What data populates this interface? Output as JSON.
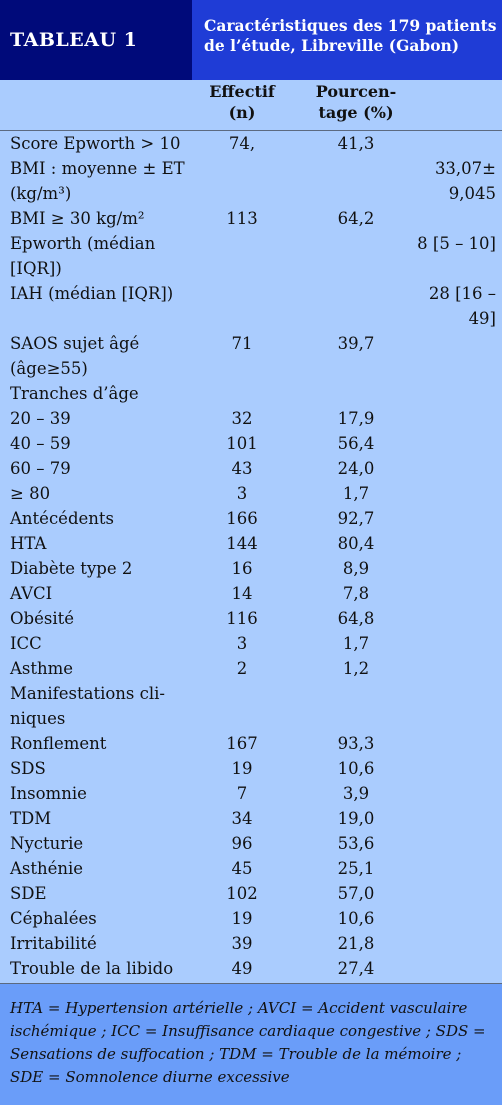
{
  "table": {
    "label": "TABLEAU 1",
    "title": "Caractéristiques des 179 patients de l’étude, Libreville (Gabon)",
    "col_effectif": "Effectif (n)",
    "col_pourcentage": "Pourcen-tage (%)",
    "rows": [
      {
        "label": "Score Epworth > 10",
        "n": "74,",
        "pct": "41,3",
        "extra": ""
      },
      {
        "label": "BMI : moyenne ± ET (kg/m³)",
        "n": "",
        "pct": "",
        "extra": "33,07± 9,045"
      },
      {
        "label": "BMI ≥ 30 kg/m²",
        "n": "113",
        "pct": "64,2",
        "extra": ""
      },
      {
        "label": "Epworth (médian [IQR])",
        "n": "",
        "pct": "",
        "extra": "8 [5 – 10]"
      },
      {
        "label": "IAH (médian [IQR])",
        "n": "",
        "pct": "",
        "extra": "28 [16 – 49]"
      },
      {
        "label": "SAOS sujet âgé (âge≥55)",
        "n": "71",
        "pct": "39,7",
        "extra": ""
      },
      {
        "label": "Tranches d’âge",
        "n": "",
        "pct": "",
        "extra": ""
      },
      {
        "label": "20 – 39",
        "n": "32",
        "pct": "17,9",
        "extra": ""
      },
      {
        "label": "40 – 59",
        "n": "101",
        "pct": "56,4",
        "extra": ""
      },
      {
        "label": "60 – 79",
        "n": "43",
        "pct": "24,0",
        "extra": ""
      },
      {
        "label": "≥ 80",
        "n": "3",
        "pct": "1,7",
        "extra": ""
      },
      {
        "label": "Antécédents",
        "n": "166",
        "pct": "92,7",
        "extra": ""
      },
      {
        "label": "HTA",
        "n": "144",
        "pct": "80,4",
        "extra": ""
      },
      {
        "label": "Diabète type 2",
        "n": "16",
        "pct": "8,9",
        "extra": ""
      },
      {
        "label": "AVCI",
        "n": "14",
        "pct": "7,8",
        "extra": ""
      },
      {
        "label": "Obésité",
        "n": "116",
        "pct": "64,8",
        "extra": ""
      },
      {
        "label": "ICC",
        "n": "3",
        "pct": "1,7",
        "extra": ""
      },
      {
        "label": "Asthme",
        "n": "2",
        "pct": "1,2",
        "extra": ""
      },
      {
        "label": "Manifestations cli-niques",
        "n": "",
        "pct": "",
        "extra": ""
      },
      {
        "label": "Ronflement",
        "n": "167",
        "pct": "93,3",
        "extra": ""
      },
      {
        "label": "SDS",
        "n": "19",
        "pct": "10,6",
        "extra": ""
      },
      {
        "label": "Insomnie",
        "n": "7",
        "pct": "3,9",
        "extra": ""
      },
      {
        "label": "TDM",
        "n": "34",
        "pct": "19,0",
        "extra": ""
      },
      {
        "label": "Nycturie",
        "n": "96",
        "pct": "53,6",
        "extra": ""
      },
      {
        "label": "Asthénie",
        "n": "45",
        "pct": "25,1",
        "extra": ""
      },
      {
        "label": "SDE",
        "n": "102",
        "pct": "57,0",
        "extra": ""
      },
      {
        "label": "Céphalées",
        "n": "19",
        "pct": "10,6",
        "extra": ""
      },
      {
        "label": "Irritabilité",
        "n": "39",
        "pct": "21,8",
        "extra": ""
      },
      {
        "label": "Trouble de la libido",
        "n": "49",
        "pct": "27,4",
        "extra": ""
      }
    ],
    "footnote": "HTA = Hypertension artérielle ; AVCI = Accident vasculaire ischémique ; ICC = Insuffisance cardiaque congestive ; SDS = Sensations de suffocation ; TDM = Trouble de la mémoire ; SDE = Somnolence diurne excessive"
  }
}
